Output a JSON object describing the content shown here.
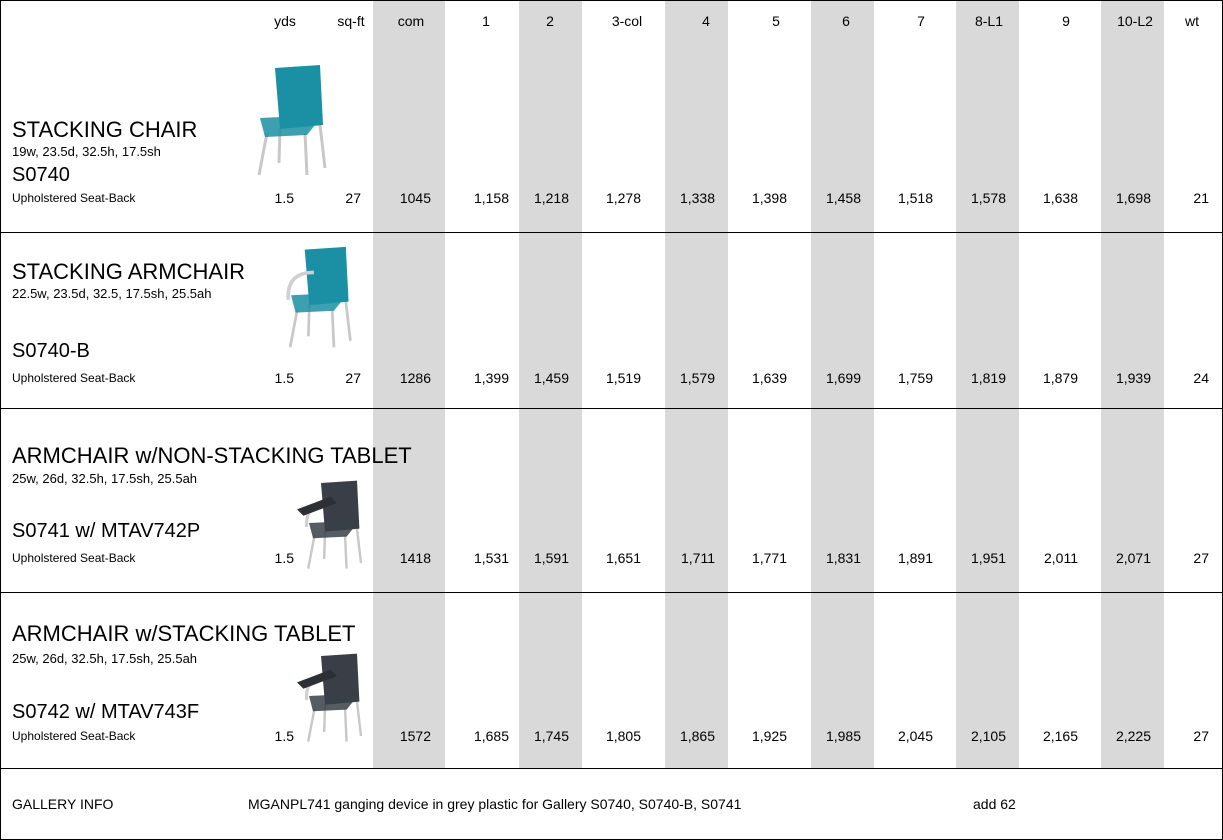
{
  "header": {
    "columns": [
      "yds",
      "sq-ft",
      "com",
      "1",
      "2",
      "3-col",
      "4",
      "5",
      "6",
      "7",
      "8-L1",
      "9",
      "10-L2",
      "wt"
    ]
  },
  "rows": [
    {
      "title": "STACKING CHAIR",
      "dims": "19w, 23.5d, 32.5h, 17.5sh",
      "model": "S0740",
      "description": "Upholstered Seat-Back",
      "cells": [
        "1.5",
        "27",
        "1045",
        "1,158",
        "1,218",
        "1,278",
        "1,338",
        "1,398",
        "1,458",
        "1,518",
        "1,578",
        "1,638",
        "1,698",
        "21"
      ]
    },
    {
      "title": "STACKING ARMCHAIR",
      "dims": "22.5w, 23.5d, 32.5, 17.5sh, 25.5ah",
      "model": "S0740-B",
      "description": "Upholstered Seat-Back",
      "cells": [
        "1.5",
        "27",
        "1286",
        "1,399",
        "1,459",
        "1,519",
        "1,579",
        "1,639",
        "1,699",
        "1,759",
        "1,819",
        "1,879",
        "1,939",
        "24"
      ]
    },
    {
      "title": "ARMCHAIR w/NON-STACKING TABLET",
      "dims": "25w, 26d, 32.5h, 17.5sh, 25.5ah",
      "model": "S0741 w/ MTAV742P",
      "description": "Upholstered Seat-Back",
      "cells": [
        "1.5",
        null,
        "1418",
        "1,531",
        "1,591",
        "1,651",
        "1,711",
        "1,771",
        "1,831",
        "1,891",
        "1,951",
        "2,011",
        "2,071",
        "27"
      ]
    },
    {
      "title": "ARMCHAIR w/STACKING TABLET",
      "dims": "25w, 26d, 32.5h, 17.5sh, 25.5ah",
      "model": "S0742 w/ MTAV743F",
      "description": "Upholstered Seat-Back",
      "cells": [
        "1.5",
        null,
        "1572",
        "1,685",
        "1,745",
        "1,805",
        "1,865",
        "1,925",
        "1,985",
        "2,045",
        "2,105",
        "2,165",
        "2,225",
        "27"
      ]
    }
  ],
  "footer": {
    "label": "GALLERY INFO",
    "description": "MGANPL741 ganging device in grey plastic for Gallery S0740, S0740-B, S0741",
    "note": "add 62"
  }
}
